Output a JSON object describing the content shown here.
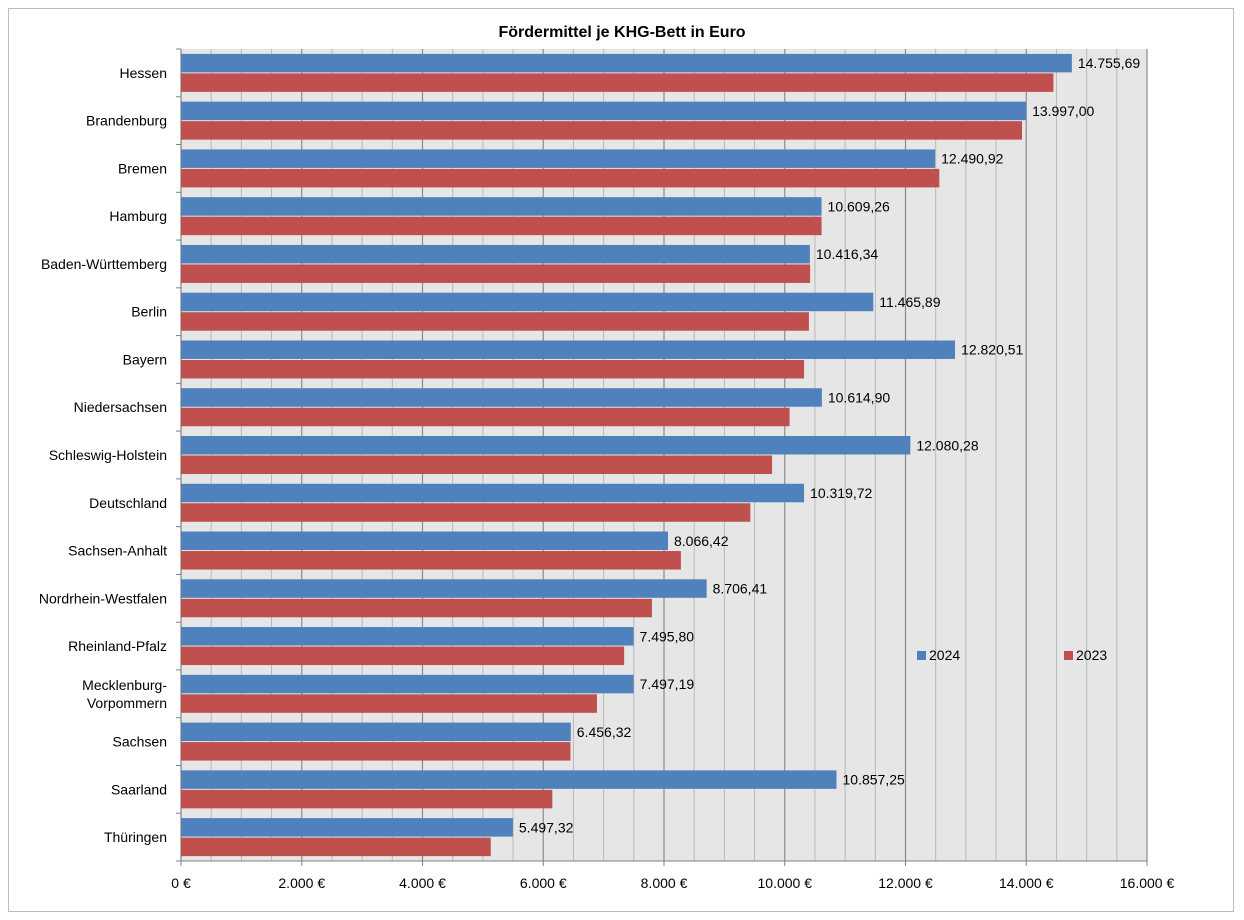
{
  "chart_data": {
    "type": "bar",
    "orientation": "horizontal",
    "title": "Fördermittel je KHG-Bett in Euro",
    "xlabel": "",
    "ylabel": "",
    "xlim": [
      0,
      16000
    ],
    "x_ticks": [
      0,
      2000,
      4000,
      6000,
      8000,
      10000,
      12000,
      14000,
      16000
    ],
    "x_tick_labels": [
      "0 €",
      "2.000 €",
      "4.000 €",
      "6.000 €",
      "8.000 €",
      "10.000 €",
      "12.000 €",
      "14.000 €",
      "16.000 €"
    ],
    "grid": true,
    "legend_position": "right, inside plot area",
    "categories": [
      "Hessen",
      "Brandenburg",
      "Bremen",
      "Hamburg",
      "Baden-Württemberg",
      "Berlin",
      "Bayern",
      "Niedersachsen",
      "Schleswig-Holstein",
      "Deutschland",
      "Sachsen-Anhalt",
      "Nordrhein-Westfalen",
      "Rheinland-Pfalz",
      "Mecklenburg-Vorpommern",
      "Sachsen",
      "Saarland",
      "Thüringen"
    ],
    "category_label_lines": [
      [
        "Hessen"
      ],
      [
        "Brandenburg"
      ],
      [
        "Bremen"
      ],
      [
        "Hamburg"
      ],
      [
        "Baden-Württemberg"
      ],
      [
        "Berlin"
      ],
      [
        "Bayern"
      ],
      [
        "Niedersachsen"
      ],
      [
        "Schleswig-Holstein"
      ],
      [
        "Deutschland"
      ],
      [
        "Sachsen-Anhalt"
      ],
      [
        "Nordrhein-Westfalen"
      ],
      [
        "Rheinland-Pfalz"
      ],
      [
        "Mecklenburg-",
        "Vorpommern"
      ],
      [
        "Sachsen"
      ],
      [
        "Saarland"
      ],
      [
        "Thüringen"
      ]
    ],
    "series": [
      {
        "name": "2024",
        "color": "#4f81bd",
        "values": [
          14755.69,
          13997.0,
          12490.92,
          10609.26,
          10416.34,
          11465.89,
          12820.51,
          10614.9,
          12080.28,
          10319.72,
          8066.42,
          8706.41,
          7495.8,
          7497.19,
          6456.32,
          10857.25,
          5497.32
        ],
        "data_labels": [
          "14.755,69",
          "13.997,00",
          "12.490,92",
          "10.609,26",
          "10.416,34",
          "11.465,89",
          "12.820,51",
          "10.614,90",
          "12.080,28",
          "10.319,72",
          "8.066,42",
          "8.706,41",
          "7.495,80",
          "7.497,19",
          "6.456,32",
          "10.857,25",
          "5.497,32"
        ]
      },
      {
        "name": "2023",
        "color": "#c0504d",
        "values": [
          14450,
          13930,
          12560,
          10610,
          10420,
          10400,
          10320,
          10080,
          9790,
          9430,
          8280,
          7800,
          7340,
          6890,
          6450,
          6150,
          5130
        ]
      }
    ]
  }
}
